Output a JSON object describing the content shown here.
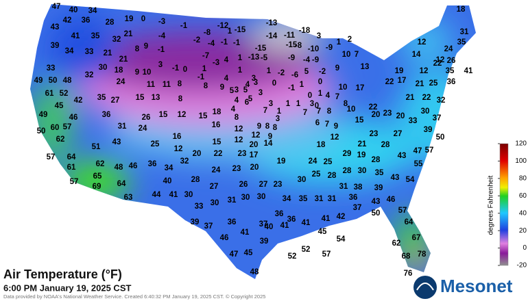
{
  "map": {
    "title": "Air Temperature (°F)",
    "subtitle": "6:00 PM January 19, 2025 CST",
    "credit": "Data provided by NOAA's National Weather Service. Created 6:40:32 PM January 19, 2025 CST. © Copyright 2025",
    "logo": "Mesonet",
    "legend": {
      "label": "degrees Fahrenheit",
      "range": [
        -20,
        120
      ],
      "ticks": [
        120,
        100,
        80,
        60,
        40,
        20,
        0,
        -20
      ]
    },
    "stations": [
      47,
      40,
      34,
      42,
      36,
      28,
      19,
      0,
      -3,
      -1,
      -8,
      -12,
      -15,
      -13,
      -18,
      -14,
      -11,
      2,
      1,
      18,
      31,
      35,
      12,
      14,
      24,
      43,
      41,
      35,
      32,
      21,
      8,
      9,
      -4,
      -1,
      -2,
      -4,
      -1,
      -1,
      1,
      -15,
      -15,
      -8,
      -10,
      3,
      -9,
      39,
      34,
      33,
      21,
      21,
      -7,
      -3,
      4,
      1,
      -13,
      -5,
      -9,
      -4,
      -9,
      9,
      10,
      7,
      13,
      12,
      22,
      26,
      33,
      32,
      30,
      18,
      9,
      10,
      3,
      -1,
      0,
      1,
      4,
      1,
      3,
      1,
      -2,
      -6,
      5,
      -2,
      19,
      12,
      35,
      41,
      49,
      50,
      48,
      24,
      11,
      11,
      8,
      -1,
      8,
      9,
      3,
      4,
      3,
      0,
      1,
      0,
      10,
      17,
      22,
      17,
      21,
      25,
      36,
      61,
      52,
      15,
      13,
      8,
      5,
      5,
      3,
      -1,
      0,
      1,
      42,
      35,
      27,
      4,
      5,
      3,
      1,
      1,
      3,
      4,
      7,
      8,
      22,
      21,
      22,
      32,
      45,
      4,
      1,
      0,
      10,
      15,
      12,
      15,
      18,
      8,
      7,
      3,
      7,
      7,
      8,
      23,
      30,
      49,
      36,
      46,
      24,
      26,
      6,
      20,
      20,
      37,
      33,
      31,
      16,
      12,
      9,
      8,
      8,
      6,
      7,
      9,
      15,
      50,
      60,
      57,
      16,
      9,
      12,
      12,
      23,
      27,
      39,
      62,
      12,
      25,
      12,
      15,
      20,
      14,
      18,
      21,
      28,
      50,
      51,
      43,
      57,
      64,
      20,
      22,
      23,
      17,
      19,
      24,
      25,
      29,
      19,
      28,
      43,
      47,
      57,
      62,
      48,
      46,
      36,
      34,
      32,
      24,
      23,
      20,
      61,
      65,
      30,
      25,
      28,
      28,
      30,
      35,
      55,
      57,
      69,
      64,
      40,
      28,
      27,
      26,
      27,
      23,
      31,
      38,
      39,
      43,
      54,
      63,
      44,
      41,
      30,
      31,
      30,
      30,
      34,
      35,
      31,
      31,
      36,
      43,
      46,
      33,
      30,
      37,
      50,
      57,
      39,
      37,
      36,
      37,
      36,
      36,
      41,
      42,
      64,
      46,
      41,
      40,
      41,
      41,
      45,
      54,
      39,
      62,
      67,
      47,
      45,
      52,
      52,
      57,
      68,
      78,
      48,
      76
    ]
  }
}
